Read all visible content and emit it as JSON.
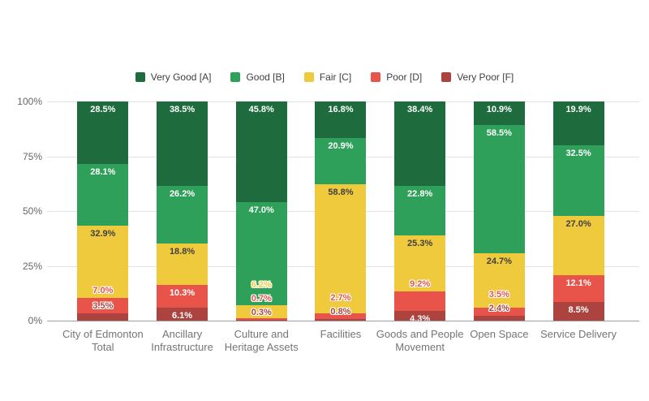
{
  "chart_data": {
    "type": "bar",
    "stacked": true,
    "orientation": "vertical",
    "title": "",
    "xlabel": "",
    "ylabel": "",
    "ylim": [
      0,
      100
    ],
    "yticks": [
      0,
      25,
      50,
      75,
      100
    ],
    "ytick_labels": [
      "0%",
      "25%",
      "50%",
      "75%",
      "100%"
    ],
    "grid": true,
    "legend_position": "top",
    "value_suffix": "%",
    "categories": [
      "City of Edmonton Total",
      "Ancillary Infrastructure",
      "Culture and Heritage Assets",
      "Facilities",
      "Goods and People Movement",
      "Open Space",
      "Service Delivery"
    ],
    "series": [
      {
        "name": "Very Good [A]",
        "color": "#1e6b3e",
        "values": [
          28.5,
          38.5,
          45.8,
          16.8,
          38.4,
          10.9,
          19.9
        ],
        "label_style": [
          "in",
          "in",
          "in",
          "in",
          "in",
          "in",
          "in"
        ]
      },
      {
        "name": "Good [B]",
        "color": "#2fa05a",
        "values": [
          28.1,
          26.2,
          47.0,
          20.9,
          22.8,
          58.5,
          32.5
        ],
        "label_style": [
          "in",
          "in",
          "in",
          "in",
          "in",
          "in",
          "in"
        ]
      },
      {
        "name": "Fair [C]",
        "color": "#f0ca3d",
        "values": [
          32.9,
          18.8,
          6.2,
          58.8,
          25.3,
          24.7,
          27.0
        ],
        "label_style": [
          "in",
          "in",
          "out",
          "in",
          "in",
          "in",
          "in"
        ]
      },
      {
        "name": "Poor [D]",
        "color": "#e8544a",
        "values": [
          7.0,
          10.3,
          0.7,
          2.7,
          9.2,
          3.5,
          12.1
        ],
        "label_style": [
          "out",
          "in",
          "out",
          "out",
          "out",
          "out",
          "in"
        ]
      },
      {
        "name": "Very Poor [F]",
        "color": "#ac433e",
        "values": [
          3.5,
          6.1,
          0.3,
          0.8,
          4.3,
          2.4,
          8.5
        ],
        "label_style": [
          "out",
          "in",
          "out",
          "out",
          "in",
          "out",
          "in"
        ]
      }
    ],
    "colors": {
      "grid": "#e2e2e2",
      "baseline": "#9aa0a6",
      "y_axis_text": "#666666",
      "x_axis_text": "#757575",
      "legend_text": "#3c4043",
      "label_dark": "#3f3f3f",
      "label_light": "#ffffff"
    }
  }
}
